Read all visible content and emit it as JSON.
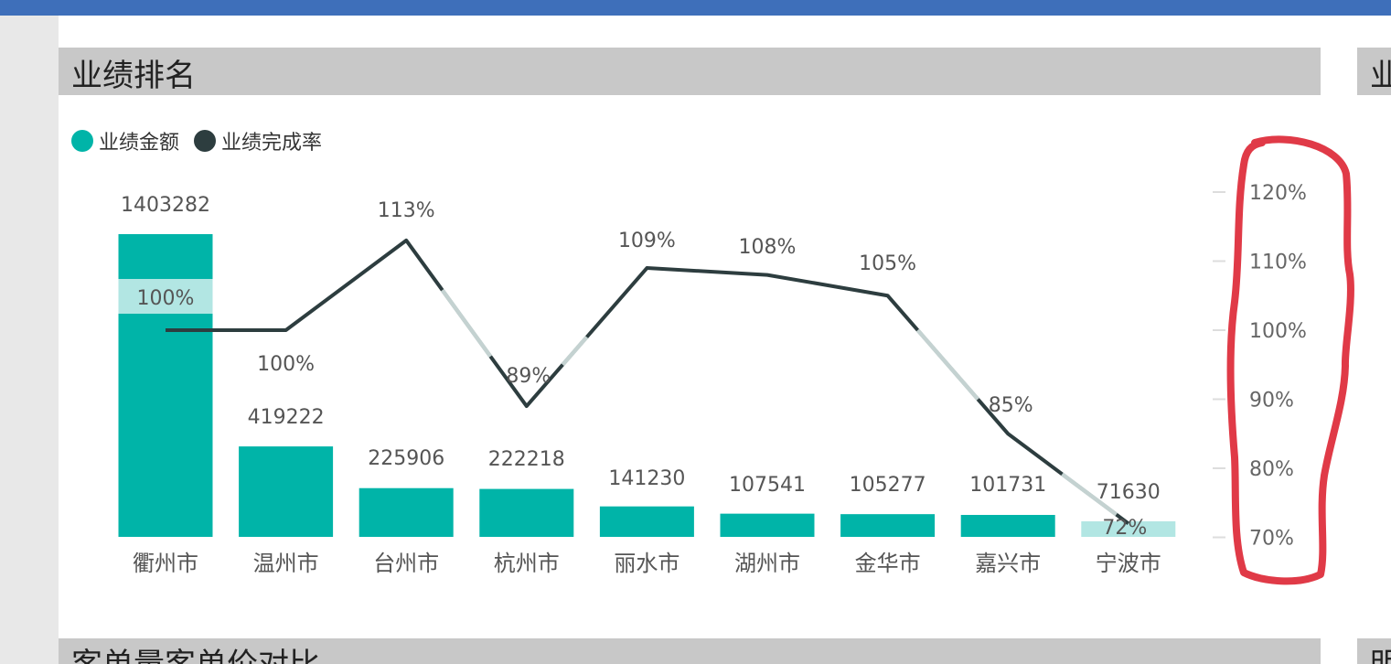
{
  "panels": {
    "main_title": "业绩排名",
    "right_title": "业",
    "bottom_title": "客单量客单价对比",
    "bottom_right_title": "明"
  },
  "legend": [
    {
      "label": "业绩金额",
      "color": "#00b4a8"
    },
    {
      "label": "业绩完成率",
      "color": "#2d3d3f"
    }
  ],
  "colors": {
    "bar": "#00b4a8",
    "bar_highlight": "#b2e6e3",
    "line": "#2d3d3f",
    "line_occluded": "#c4d2d1",
    "annotation": "#e03a47"
  },
  "chart_data": {
    "type": "bar",
    "categories": [
      "衢州市",
      "温州市",
      "台州市",
      "杭州市",
      "丽水市",
      "湖州市",
      "金华市",
      "嘉兴市",
      "宁波市"
    ],
    "series": [
      {
        "name": "业绩金额",
        "type": "bar",
        "axis": "left",
        "values": [
          1403282,
          419222,
          225906,
          222218,
          141230,
          107541,
          105277,
          101731,
          71630
        ],
        "labels": [
          "1403282",
          "419222",
          "225906",
          "222218",
          "141230",
          "107541",
          "105277",
          "101731",
          "71630"
        ]
      },
      {
        "name": "业绩完成率",
        "type": "line",
        "axis": "right",
        "values": [
          100,
          100,
          113,
          89,
          109,
          108,
          105,
          85,
          72
        ],
        "labels": [
          "100%",
          "100%",
          "113%",
          "89%",
          "109%",
          "108%",
          "105%",
          "85%",
          "72%"
        ]
      }
    ],
    "right_axis": {
      "ticks": [
        "120%",
        "110%",
        "100%",
        "90%",
        "80%",
        "70%"
      ],
      "tick_values": [
        120,
        110,
        100,
        90,
        80,
        70
      ],
      "range": [
        68,
        123
      ]
    },
    "left_axis": {
      "range": [
        0,
        1403282
      ],
      "shown": false
    },
    "grid": false,
    "legend_position": "top-left",
    "annotation": "hand-drawn red outline around the right axis"
  }
}
